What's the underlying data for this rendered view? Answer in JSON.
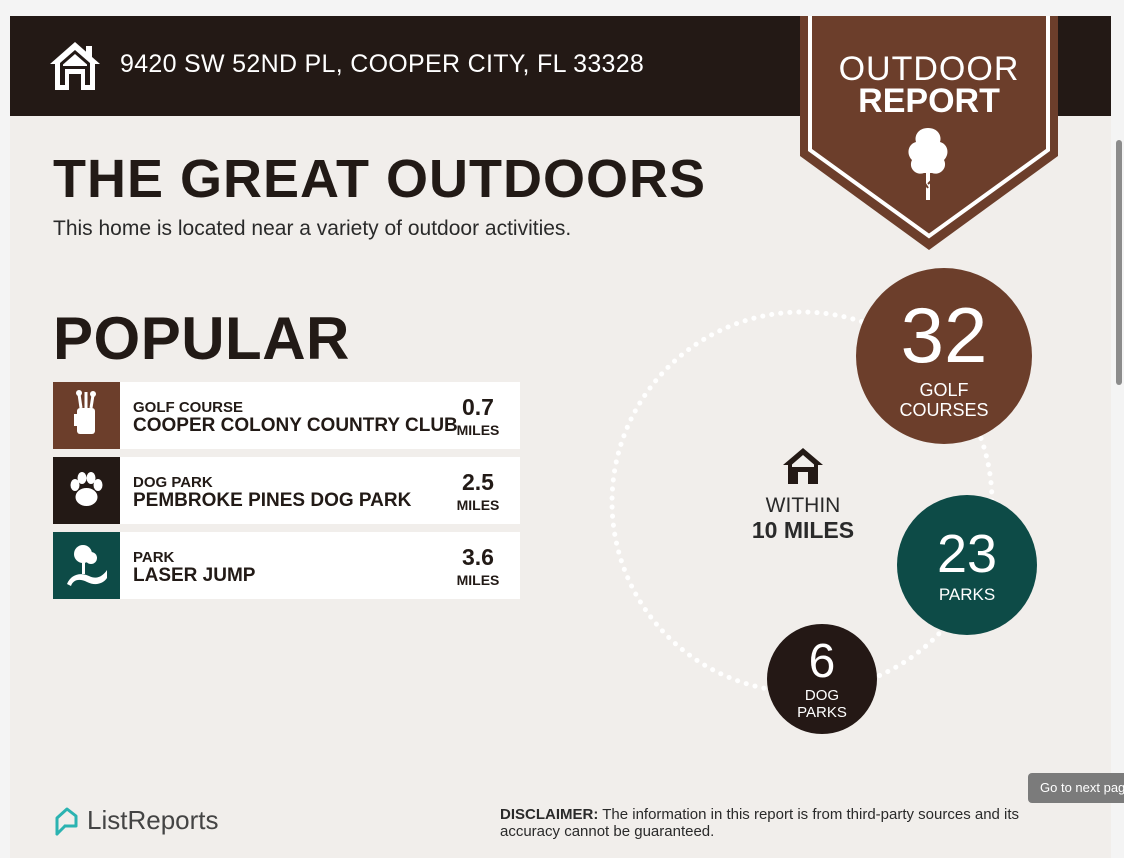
{
  "header": {
    "address": "9420 SW 52ND PL, COOPER CITY, FL 33328",
    "badge_line1": "OUTDOOR",
    "badge_line2": "REPORT"
  },
  "intro": {
    "title": "THE GREAT OUTDOORS",
    "subtitle": "This home is located near a variety of outdoor activities."
  },
  "popular": {
    "heading": "POPULAR",
    "items": [
      {
        "category": "GOLF COURSE",
        "name": "COOPER COLONY COUNTRY CLUB",
        "distance": "0.7",
        "unit": "MILES",
        "color": "#6c3e2b",
        "icon": "golf-bag-icon"
      },
      {
        "category": "DOG PARK",
        "name": "PEMBROKE PINES DOG PARK",
        "distance": "2.5",
        "unit": "MILES",
        "color": "#231915",
        "icon": "paw-icon"
      },
      {
        "category": "PARK",
        "name": "LASER JUMP",
        "distance": "3.6",
        "unit": "MILES",
        "color": "#0d4b47",
        "icon": "park-icon"
      }
    ]
  },
  "radius": {
    "within": "WITHIN",
    "miles": "10 MILES",
    "golf": {
      "count": "32",
      "label_line1": "GOLF",
      "label_line2": "COURSES",
      "color": "#6c3e2b"
    },
    "parks": {
      "count": "23",
      "label": "PARKS",
      "color": "#0d4b47"
    },
    "dog_parks": {
      "count": "6",
      "label_line1": "DOG",
      "label_line2": "PARKS",
      "color": "#241815"
    }
  },
  "footer": {
    "brand": "ListReports",
    "disclaimer_label": "DISCLAIMER:",
    "disclaimer_text": " The information in this report is from third-party sources and its accuracy cannot be guaranteed."
  },
  "viewer": {
    "next_page": "Go to next pag"
  }
}
